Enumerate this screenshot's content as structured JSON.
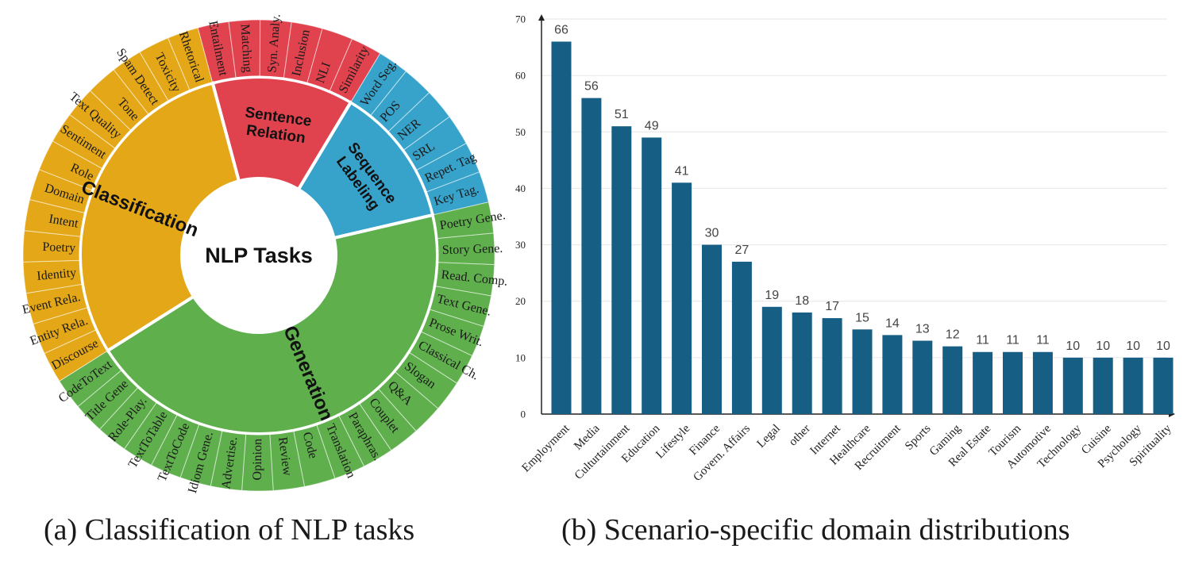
{
  "figure_a": {
    "caption": "(a) Classification of NLP tasks",
    "center_label": "NLP Tasks",
    "chart_data": {
      "type": "sunburst",
      "categories": [
        {
          "name": "Sentence Relation",
          "lines": [
            "Sentence",
            "Relation"
          ],
          "color": "#E0434E",
          "leaves": [
            "Entailment",
            "Matching",
            "Syn. Analy.",
            "Inclusion",
            "NLI",
            "Similarity"
          ]
        },
        {
          "name": "Sequence Labeling",
          "lines": [
            "Sequence",
            "Labeling"
          ],
          "color": "#37A3CB",
          "leaves": [
            "Word Seg.",
            "POS",
            "NER",
            "SRL",
            "Repet. Tag",
            "Key Tag."
          ]
        },
        {
          "name": "Generation",
          "lines": [
            "Generation"
          ],
          "color": "#5FAF4D",
          "leaves": [
            "Poetry Gene.",
            "Story Gene.",
            "Read. Comp.",
            "Text Gene.",
            "Prose Writ.",
            "Classical Ch.",
            "Slogan",
            "Q&A",
            "Couplet",
            "Paraphras.",
            "Translation",
            "Code",
            "Review",
            "Opinion",
            "Advertise.",
            "Idiom Gene.",
            "TextToCode",
            "TextToTable",
            "Role-Play.",
            "Title Gene",
            "CodeToText"
          ]
        },
        {
          "name": "Classification",
          "lines": [
            "Classification"
          ],
          "color": "#E4A718",
          "leaves": [
            "Discourse",
            "Entity Rela.",
            "Event Rela.",
            "Identity",
            "Poetry",
            "Intent",
            "Domain",
            "Role",
            "Sentiment",
            "Text Quality",
            "Tone",
            "Spam Detect",
            "Toxicity",
            "Rhetorical"
          ]
        }
      ]
    }
  },
  "figure_b": {
    "caption": "(b) Scenario-specific domain distributions",
    "chart_data": {
      "type": "bar",
      "categories": [
        "Employment",
        "Media",
        "Culturtainment",
        "Education",
        "Lifestyle",
        "Finance",
        "Govern. Affairs",
        "Legal",
        "other",
        "Internet",
        "Healthcare",
        "Recruitment",
        "Sports",
        "Gaming",
        "Real Estate",
        "Tourism",
        "Automotive",
        "Technology",
        "Cuisine",
        "Psychology",
        "Spirituality"
      ],
      "values": [
        66,
        56,
        51,
        49,
        41,
        30,
        27,
        19,
        18,
        17,
        15,
        14,
        13,
        12,
        11,
        11,
        11,
        10,
        10,
        10,
        10
      ],
      "ylim": [
        0,
        70
      ],
      "yticks": [
        "0",
        "10",
        "20",
        "30",
        "40",
        "50",
        "60",
        "70"
      ],
      "bar_color": "#175E85",
      "grid": true
    }
  }
}
